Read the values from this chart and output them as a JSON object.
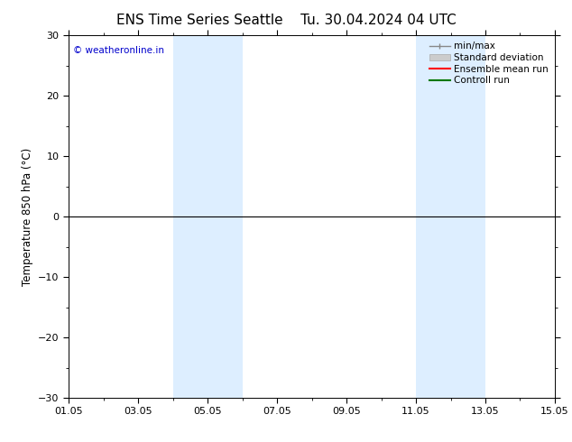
{
  "title_left": "ENS Time Series Seattle",
  "title_right": "Tu. 30.04.2024 04 UTC",
  "ylabel": "Temperature 850 hPa (°C)",
  "ylim": [
    -30,
    30
  ],
  "yticks": [
    -30,
    -20,
    -10,
    0,
    10,
    20,
    30
  ],
  "xlim_num": [
    0,
    14
  ],
  "xtick_labels": [
    "01.05",
    "03.05",
    "05.05",
    "07.05",
    "09.05",
    "11.05",
    "13.05",
    "15.05"
  ],
  "xtick_positions": [
    0,
    2,
    4,
    6,
    8,
    10,
    12,
    14
  ],
  "shaded_bands": [
    {
      "xmin": 3.0,
      "xmax": 5.0
    },
    {
      "xmin": 10.0,
      "xmax": 12.0
    }
  ],
  "shade_color": "#ddeeff",
  "zero_line_y": 0,
  "copyright_text": "© weatheronline.in",
  "copyright_color": "#0000cc",
  "bg_color": "#ffffff",
  "title_fontsize": 11,
  "axis_label_fontsize": 8.5,
  "tick_fontsize": 8,
  "legend_fontsize": 7.5
}
